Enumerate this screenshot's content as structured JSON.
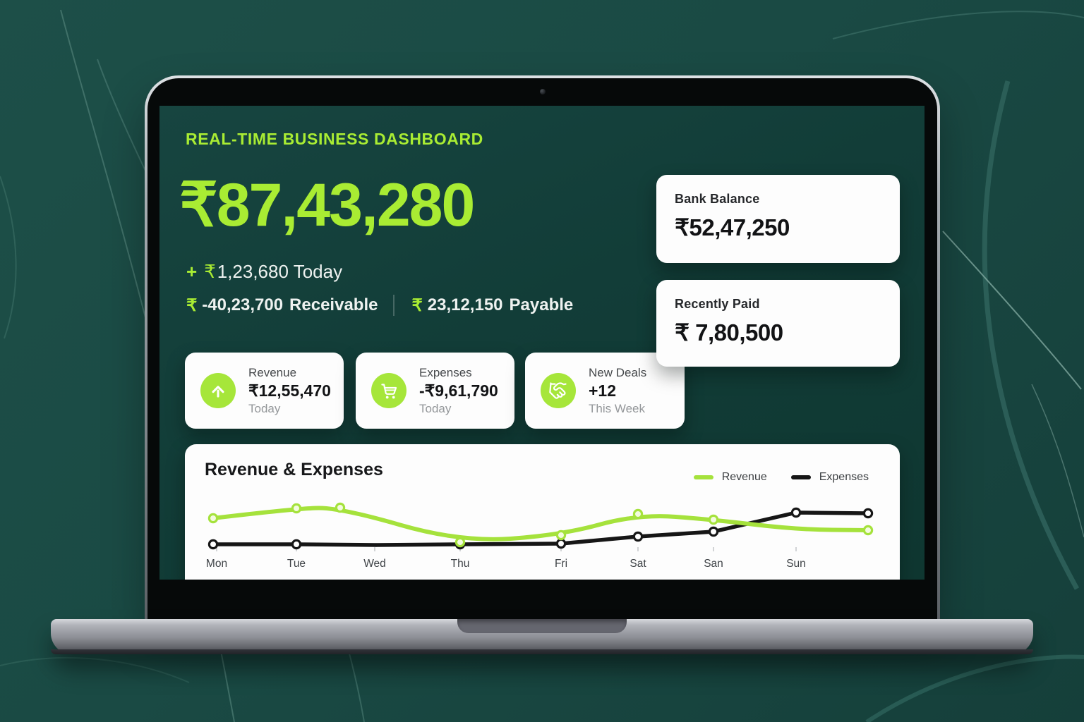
{
  "colors": {
    "accent_lime": "#a9ec33",
    "icon_circle": "#a6e63a",
    "screen_bg": "#123d38",
    "page_bg": "#1a4a44",
    "card_bg": "#fdfdfd",
    "chart_revenue": "#a5e23c",
    "chart_expenses": "#161616"
  },
  "header": {
    "title": "REAL-TIME BUSINESS DASHBOARD"
  },
  "summary": {
    "total": "₹87,43,280",
    "today": {
      "plus": "+",
      "rupee": "₹",
      "text": "1,23,680 Today"
    },
    "receivable": {
      "rupee": "₹",
      "amount": "-40,23,700",
      "label": "Receivable"
    },
    "payable": {
      "rupee": "₹",
      "amount": "23,12,150",
      "label": "Payable"
    }
  },
  "side_cards": [
    {
      "title": "Bank Balance",
      "value": "₹52,47,250"
    },
    {
      "title": "Recently Paid",
      "value": "₹ 7,80,500"
    }
  ],
  "stat_cards": [
    {
      "icon": "arrow-up-icon",
      "label": "Revenue",
      "value": "₹12,55,470",
      "sub": "Today"
    },
    {
      "icon": "cart-icon",
      "label": "Expenses",
      "value": "-₹9,61,790",
      "sub": "Today"
    },
    {
      "icon": "handshake-icon",
      "label": "New Deals",
      "value": "+12",
      "sub": "This Week"
    }
  ],
  "chart_card": {
    "title": "Revenue & Expenses",
    "legend": [
      {
        "label": "Revenue",
        "color": "#a5e23c"
      },
      {
        "label": "Expenses",
        "color": "#161616"
      }
    ]
  },
  "chart_data": {
    "type": "line",
    "title": "Revenue & Expenses",
    "categories": [
      "Mon",
      "Tue",
      "Wed",
      "Thu",
      "Fri",
      "Sat",
      "San",
      "Sun"
    ],
    "category_x": [
      45,
      158,
      269,
      390,
      533,
      642,
      749,
      866
    ],
    "values_relative_units": {
      "Revenue": [
        55,
        72,
        40,
        8,
        20,
        60,
        48,
        33
      ],
      "Expenses": [
        5,
        5,
        5,
        5,
        6,
        18,
        27,
        62
      ]
    },
    "ylim": [
      0,
      100
    ],
    "grid": false,
    "legend_position": "top-right",
    "series": [
      {
        "name": "Expenses",
        "color": "#161616",
        "width": 5.5,
        "smooth": false,
        "marker_fill": "#ffffff",
        "points": [
          [
            40,
            84
          ],
          [
            158,
            84
          ],
          [
            271,
            85
          ],
          [
            390,
            84
          ],
          [
            533,
            83
          ],
          [
            642,
            73
          ],
          [
            749,
            66
          ],
          [
            866,
            39
          ],
          [
            968,
            40
          ]
        ],
        "marker_idx": [
          0,
          1,
          3,
          4,
          5,
          6,
          7,
          8
        ],
        "small_marker_idx": [
          2
        ]
      },
      {
        "name": "Revenue",
        "color": "#a5e23c",
        "width": 6,
        "smooth": true,
        "marker_fill": "#f3fbdf",
        "points": [
          [
            40,
            47
          ],
          [
            158,
            33
          ],
          [
            220,
            32
          ],
          [
            390,
            81
          ],
          [
            533,
            71
          ],
          [
            642,
            41
          ],
          [
            749,
            49
          ],
          [
            866,
            63
          ],
          [
            968,
            64
          ]
        ],
        "marker_idx": [
          0,
          1,
          2,
          3,
          4,
          5,
          6,
          8
        ],
        "small_marker_idx": []
      }
    ]
  }
}
